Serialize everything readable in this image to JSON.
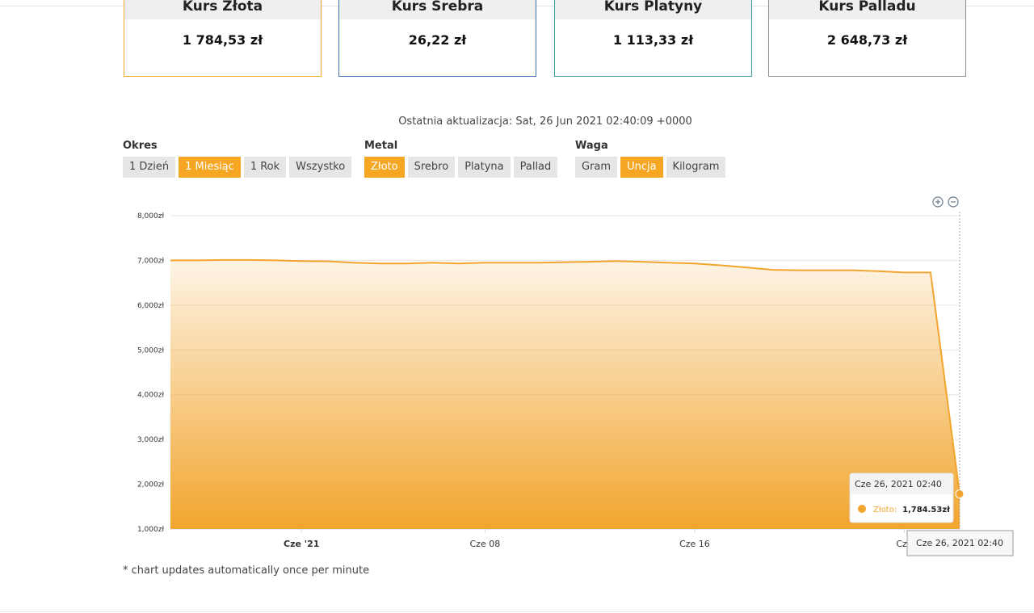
{
  "cards": [
    {
      "title": "Kurs Złota",
      "value": "1 784,53 zł",
      "color": "#f5a623"
    },
    {
      "title": "Kurs Srebra",
      "value": "26,22 zł",
      "color": "#3d6fb6"
    },
    {
      "title": "Kurs Platyny",
      "value": "1 113,33 zł",
      "color": "#3a9e9e"
    },
    {
      "title": "Kurs Palladu",
      "value": "2 648,73 zł",
      "color": "#8a8f95"
    }
  ],
  "update": "Ostatnia aktualizacja: Sat, 26 Jun 2021 02:40:09 +0000",
  "groups": [
    {
      "label": "Okres",
      "buttons": [
        "1 Dzień",
        "1 Miesiąc",
        "1 Rok",
        "Wszystko"
      ],
      "active": 1
    },
    {
      "label": "Metal",
      "buttons": [
        "Złoto",
        "Srebro",
        "Platyna",
        "Pallad"
      ],
      "active": 0
    },
    {
      "label": "Waga",
      "buttons": [
        "Gram",
        "Uncja",
        "Kilogram"
      ],
      "active": 1
    }
  ],
  "chart_data": {
    "type": "area",
    "x": [
      "2021-05-27",
      "2021-05-28",
      "2021-05-29",
      "2021-05-30",
      "2021-05-31",
      "2021-06-01",
      "2021-06-02",
      "2021-06-03",
      "2021-06-04",
      "2021-06-05",
      "2021-06-06",
      "2021-06-07",
      "2021-06-08",
      "2021-06-09",
      "2021-06-10",
      "2021-06-11",
      "2021-06-12",
      "2021-06-13",
      "2021-06-14",
      "2021-06-15",
      "2021-06-16",
      "2021-06-17",
      "2021-06-18",
      "2021-06-19",
      "2021-06-20",
      "2021-06-21",
      "2021-06-22",
      "2021-06-23",
      "2021-06-24",
      "2021-06-25",
      "2021-06-26T02:40"
    ],
    "series": [
      {
        "name": "Złoto:",
        "color": "#f2a52e",
        "values": [
          7000,
          7000,
          7010,
          7010,
          7000,
          6985,
          6980,
          6950,
          6930,
          6930,
          6950,
          6930,
          6950,
          6950,
          6950,
          6960,
          6970,
          6985,
          6970,
          6950,
          6930,
          6890,
          6840,
          6790,
          6780,
          6780,
          6780,
          6760,
          6730,
          6730,
          1784.53
        ],
        "value_labels": [
          null,
          null,
          null,
          null,
          null,
          null,
          null,
          null,
          null,
          null,
          null,
          null,
          null,
          null,
          null,
          null,
          null,
          null,
          null,
          null,
          null,
          null,
          null,
          null,
          null,
          null,
          null,
          null,
          null,
          null,
          "1,784.53zł"
        ]
      }
    ],
    "xlim": [
      "2021-05-27",
      "2021-06-26T02:40"
    ],
    "xticks": [
      {
        "value": "2021-06-01",
        "label": "Cze '21"
      },
      {
        "value": "2021-06-08",
        "label": "Cze 08"
      },
      {
        "value": "2021-06-16",
        "label": "Cze 16"
      },
      {
        "value": "2021-06-24",
        "label": "Cze"
      }
    ],
    "ylim": [
      1000,
      8000
    ],
    "yticks": [
      {
        "value": 1000,
        "label": "1,000zł"
      },
      {
        "value": 2000,
        "label": "2,000zł"
      },
      {
        "value": 3000,
        "label": "3,000zł"
      },
      {
        "value": 4000,
        "label": "4,000zł"
      },
      {
        "value": 5000,
        "label": "5,000zł"
      },
      {
        "value": 6000,
        "label": "6,000zł"
      },
      {
        "value": 7000,
        "label": "7,000zł"
      },
      {
        "value": 8000,
        "label": "8,000zł"
      }
    ],
    "grid": true,
    "tooltip": "Cze 26, 2021 02:40"
  },
  "footnote": "* chart updates automatically once per minute"
}
